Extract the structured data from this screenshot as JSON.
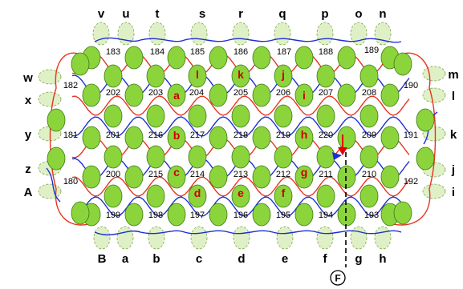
{
  "top_labels": [
    "v",
    "u",
    "t",
    "s",
    "r",
    "q",
    "p",
    "o",
    "n"
  ],
  "bottom_labels": [
    "B",
    "a",
    "b",
    "c",
    "d",
    "e",
    "f",
    "g",
    "h"
  ],
  "left_labels": [
    "w",
    "x",
    "y",
    "z",
    "A"
  ],
  "right_labels": [
    "m",
    "l",
    "k",
    "j",
    "i"
  ],
  "cells": [
    "183",
    "184",
    "185",
    "186",
    "187",
    "188",
    "189",
    "182",
    "202",
    "203",
    "204",
    "205",
    "206",
    "207",
    "208",
    "190",
    "181",
    "201",
    "216",
    "217",
    "218",
    "219",
    "220",
    "209",
    "191",
    "180",
    "200",
    "215",
    "214",
    "213",
    "212",
    "211",
    "210",
    "192",
    "199",
    "198",
    "197",
    "196",
    "195",
    "194",
    "193"
  ],
  "inner_letters": [
    "a",
    "b",
    "c",
    "d",
    "e",
    "f",
    "g",
    "h",
    "i",
    "j",
    "k",
    "l"
  ],
  "marker": "F",
  "colors": {
    "loop_red": "#e8321e",
    "loop_blue": "#1c2fd0",
    "lens_fill": "#8cd43c",
    "lens_stroke": "#3c7a12",
    "ghost_fill": "#dff0c6",
    "arrow_red": "#e00000",
    "arrow_blue": "#1c2fd0"
  }
}
